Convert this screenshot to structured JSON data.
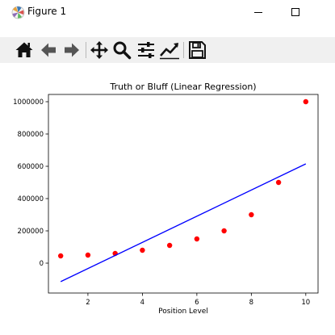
{
  "window": {
    "title": "Figure 1",
    "app_icon": "matplotlib-logo-icon",
    "controls": {
      "minimize_icon": "minimize-icon",
      "maximize_icon": "maximize-icon"
    }
  },
  "toolbar": {
    "buttons": [
      {
        "name": "home-icon"
      },
      {
        "name": "back-arrow-icon"
      },
      {
        "name": "forward-arrow-icon"
      },
      {
        "name": "pan-icon"
      },
      {
        "name": "zoom-icon"
      },
      {
        "name": "subplots-config-icon"
      },
      {
        "name": "edit-axis-icon"
      },
      {
        "name": "save-icon"
      }
    ]
  },
  "chart_data": {
    "type": "scatter",
    "title": "Truth or Bluff (Linear Regression)",
    "xlabel": "Position Level",
    "ylabel": "",
    "xlim": [
      0.55,
      10.45
    ],
    "ylim": [
      -185000,
      1045000
    ],
    "xticks": [
      2,
      4,
      6,
      8,
      10
    ],
    "yticks": [
      0,
      200000,
      400000,
      600000,
      800000,
      1000000
    ],
    "grid": false,
    "series": [
      {
        "kind": "scatter",
        "color": "#ff0000",
        "x": [
          1,
          2,
          3,
          4,
          5,
          6,
          7,
          8,
          9,
          10
        ],
        "y": [
          45000,
          50000,
          60000,
          80000,
          110000,
          150000,
          200000,
          300000,
          500000,
          1000000
        ]
      },
      {
        "kind": "line",
        "color": "#0000ff",
        "x": [
          1,
          10
        ],
        "y": [
          -114454,
          615000
        ]
      }
    ]
  }
}
